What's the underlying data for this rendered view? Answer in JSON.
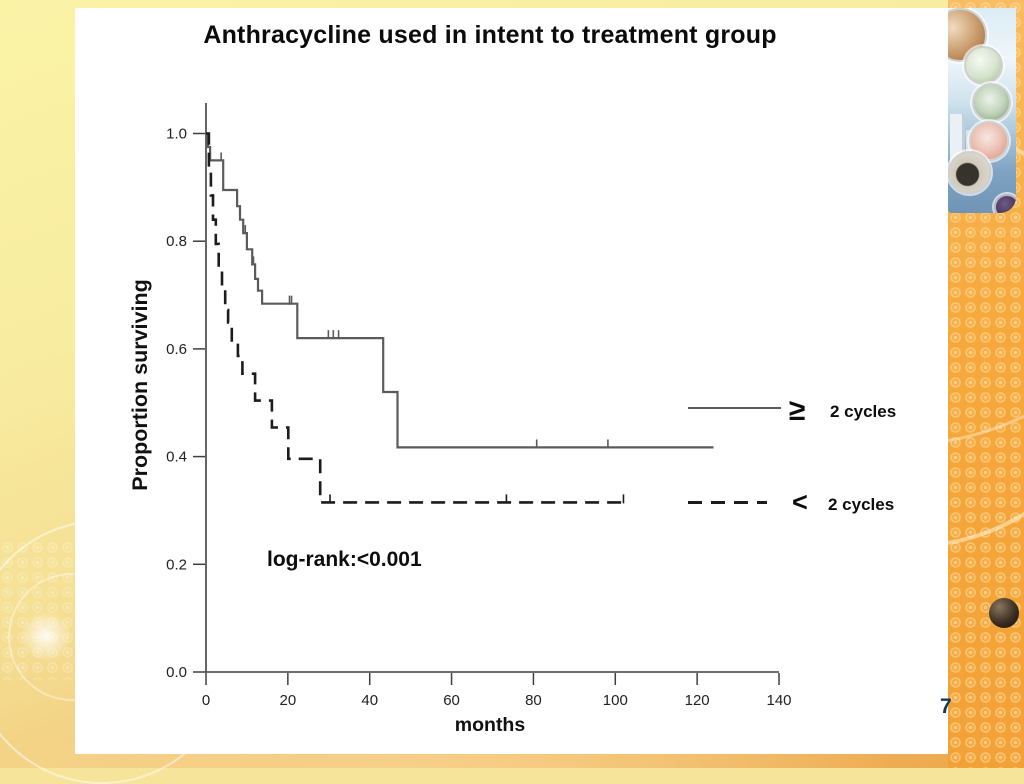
{
  "slide": {
    "title": "Anthracycline used in intent to treatment group",
    "page_number": "7"
  },
  "legend": {
    "entries": [
      {
        "symbol": "≥",
        "label": "2 cycles",
        "style": "solid"
      },
      {
        "symbol": "<",
        "label": "2 cycles",
        "style": "dashed"
      }
    ]
  },
  "chart_data": {
    "type": "line",
    "subtype": "kaplan-meier-step",
    "title": "Anthracycline used in intent to treatment group",
    "xlabel": "months",
    "ylabel": "Proportion surviving",
    "annotation": "log-rank:<0.001",
    "xlim": [
      0,
      140
    ],
    "ylim": [
      0.0,
      1.0
    ],
    "x_ticks": [
      0,
      20,
      40,
      60,
      80,
      100,
      120,
      140
    ],
    "y_ticks": [
      "1.0",
      "0.8",
      "0.6",
      "0.4",
      "0.2",
      "0.0"
    ],
    "grid": false,
    "legend_position": "right-middle",
    "series": [
      {
        "name": "≥ 2 cycles",
        "line": "solid",
        "color": "#5b5b5b",
        "steps": [
          [
            0,
            1.0
          ],
          [
            0.5,
            0.975
          ],
          [
            1,
            0.95
          ],
          [
            4.2,
            0.895
          ],
          [
            7.6,
            0.865
          ],
          [
            8.3,
            0.84
          ],
          [
            9.1,
            0.815
          ],
          [
            10,
            0.785
          ],
          [
            11.3,
            0.757
          ],
          [
            12,
            0.73
          ],
          [
            12.7,
            0.708
          ],
          [
            13.7,
            0.684
          ],
          [
            22.3,
            0.62
          ],
          [
            43.3,
            0.52
          ],
          [
            46.8,
            0.417
          ],
          [
            124,
            0.417
          ]
        ],
        "censors": [
          [
            3.7,
            0.95
          ],
          [
            9.6,
            0.815
          ],
          [
            11.6,
            0.757
          ],
          [
            20.4,
            0.684
          ],
          [
            20.9,
            0.684
          ],
          [
            29.9,
            0.62
          ],
          [
            31.1,
            0.62
          ],
          [
            32.4,
            0.62
          ],
          [
            80.8,
            0.417
          ],
          [
            98.2,
            0.417
          ]
        ]
      },
      {
        "name": "< 2 cycles",
        "line": "dashed",
        "color": "#1c1c1c",
        "steps": [
          [
            0,
            1.0
          ],
          [
            0.7,
            0.93
          ],
          [
            1.2,
            0.885
          ],
          [
            1.7,
            0.84
          ],
          [
            2.4,
            0.795
          ],
          [
            3.1,
            0.75
          ],
          [
            3.9,
            0.71
          ],
          [
            4.7,
            0.672
          ],
          [
            5.4,
            0.649
          ],
          [
            6.3,
            0.613
          ],
          [
            7.8,
            0.587
          ],
          [
            8.9,
            0.554
          ],
          [
            12,
            0.504
          ],
          [
            16.1,
            0.454
          ],
          [
            20.1,
            0.396
          ],
          [
            27.9,
            0.315
          ],
          [
            102,
            0.315
          ]
        ],
        "censors": [
          [
            30.3,
            0.315
          ],
          [
            73.4,
            0.315
          ],
          [
            102,
            0.315
          ]
        ]
      }
    ]
  },
  "colors": {
    "background_yellow": "#f8eca0",
    "background_orange": "#f6a93d",
    "slide_white": "#ffffff",
    "solid_curve": "#5b5b5b",
    "dashed_curve": "#1c1c1c",
    "axis": "#3f3f3f",
    "page_number_navy": "#17365d"
  }
}
